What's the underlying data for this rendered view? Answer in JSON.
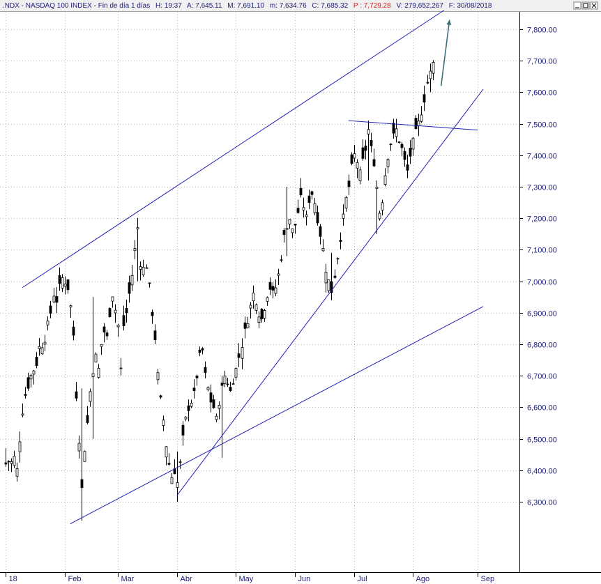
{
  "header": {
    "symbol": ".NDX - NASDAQ 100 INDEX - Fin de día 1 días",
    "high": "H: 19:37",
    "avg": "A: 7,645.11",
    "max": "M: 7,691.10",
    "min": "m: 7,634.76",
    "close": "C: 7,685.32",
    "price": "P : 7,729.28",
    "volume": "V: 279,652,267",
    "date": "F: 30/08/2018"
  },
  "window_buttons": {
    "minimize": "minimize-icon",
    "restore": "restore-icon",
    "close": "close-icon"
  },
  "colors": {
    "candle": "#000000",
    "trendline": "#1f1fb4",
    "arrow": "#3c6e78",
    "axis_text": "#1a1a7a",
    "price_text": "#d42020",
    "grid": "#b4b4b4"
  },
  "chart_data": {
    "type": "candlestick",
    "title": ".NDX - NASDAQ 100 INDEX",
    "ylim": [
      6220,
      7880
    ],
    "grid": true,
    "y_ticks": [
      "7,800.00",
      "7,700.00",
      "7,600.00",
      "7,500.00",
      "7,400.00",
      "7,300.00",
      "7,200.00",
      "7,100.00",
      "7,000.00",
      "6,900.00",
      "6,800.00",
      "6,700.00",
      "6,600.00",
      "6,500.00",
      "6,400.00",
      "6,300.00"
    ],
    "y_tick_values": [
      7800,
      7700,
      7600,
      7500,
      7400,
      7300,
      7200,
      7100,
      7000,
      6900,
      6800,
      6700,
      6600,
      6500,
      6400,
      6300
    ],
    "x_labels": [
      "18",
      "Feb",
      "Mar",
      "Abr",
      "May",
      "Jun",
      "Jul",
      "Ago",
      "Sep"
    ],
    "x_label_index": [
      0,
      21,
      40,
      61,
      82,
      103,
      124,
      145,
      168
    ],
    "num_bars": 174,
    "anchors": [
      [
        0,
        6420
      ],
      [
        1,
        6430
      ],
      [
        2,
        6425
      ],
      [
        3,
        6440
      ],
      [
        4,
        6400
      ],
      [
        5,
        6500
      ],
      [
        6,
        6590
      ],
      [
        7,
        6640
      ],
      [
        8,
        6670
      ],
      [
        9,
        6700
      ],
      [
        10,
        6720
      ],
      [
        11,
        6740
      ],
      [
        12,
        6790
      ],
      [
        13,
        6800
      ],
      [
        14,
        6820
      ],
      [
        15,
        6860
      ],
      [
        16,
        6900
      ],
      [
        17,
        6960
      ],
      [
        18,
        6940
      ],
      [
        19,
        6980
      ],
      [
        20,
        7010
      ],
      [
        21,
        7000
      ],
      [
        22,
        6980
      ],
      [
        23,
        6920
      ],
      [
        24,
        6830
      ],
      [
        25,
        6640
      ],
      [
        26,
        6500
      ],
      [
        27,
        6340
      ],
      [
        28,
        6470
      ],
      [
        29,
        6550
      ],
      [
        30,
        6650
      ],
      [
        31,
        6720
      ],
      [
        32,
        6760
      ],
      [
        33,
        6720
      ],
      [
        34,
        6800
      ],
      [
        35,
        6840
      ],
      [
        36,
        6820
      ],
      [
        37,
        6900
      ],
      [
        38,
        6960
      ],
      [
        39,
        6910
      ],
      [
        40,
        6860
      ],
      [
        41,
        6720
      ],
      [
        42,
        6860
      ],
      [
        43,
        6900
      ],
      [
        44,
        6960
      ],
      [
        45,
        7020
      ],
      [
        46,
        7100
      ],
      [
        47,
        7170
      ],
      [
        48,
        7060
      ],
      [
        49,
        7040
      ],
      [
        50,
        7050
      ],
      [
        51,
        6980
      ],
      [
        52,
        6900
      ],
      [
        53,
        6820
      ],
      [
        54,
        6700
      ],
      [
        55,
        6620
      ],
      [
        56,
        6560
      ],
      [
        57,
        6480
      ],
      [
        58,
        6420
      ],
      [
        59,
        6380
      ],
      [
        60,
        6400
      ],
      [
        61,
        6360
      ],
      [
        62,
        6420
      ],
      [
        63,
        6500
      ],
      [
        64,
        6560
      ],
      [
        65,
        6600
      ],
      [
        66,
        6620
      ],
      [
        67,
        6640
      ],
      [
        68,
        6700
      ],
      [
        69,
        6760
      ],
      [
        70,
        6780
      ],
      [
        71,
        6700
      ],
      [
        72,
        6660
      ],
      [
        73,
        6620
      ],
      [
        74,
        6600
      ],
      [
        75,
        6560
      ],
      [
        76,
        6620
      ],
      [
        77,
        6660
      ],
      [
        78,
        6700
      ],
      [
        79,
        6680
      ],
      [
        80,
        6650
      ],
      [
        81,
        6690
      ],
      [
        82,
        6720
      ],
      [
        83,
        6760
      ],
      [
        84,
        6800
      ],
      [
        85,
        6840
      ],
      [
        86,
        6880
      ],
      [
        87,
        6920
      ],
      [
        88,
        6960
      ],
      [
        89,
        6940
      ],
      [
        90,
        6900
      ],
      [
        91,
        6880
      ],
      [
        92,
        6920
      ],
      [
        93,
        6960
      ],
      [
        94,
        6980
      ],
      [
        95,
        6960
      ],
      [
        96,
        6980
      ],
      [
        97,
        7020
      ],
      [
        98,
        7080
      ],
      [
        99,
        7140
      ],
      [
        100,
        7180
      ],
      [
        101,
        7200
      ],
      [
        102,
        7160
      ],
      [
        103,
        7180
      ],
      [
        104,
        7220
      ],
      [
        105,
        7260
      ],
      [
        106,
        7240
      ],
      [
        107,
        7200
      ],
      [
        108,
        7260
      ],
      [
        109,
        7280
      ],
      [
        110,
        7250
      ],
      [
        111,
        7200
      ],
      [
        112,
        7150
      ],
      [
        113,
        7100
      ],
      [
        114,
        7040
      ],
      [
        115,
        7000
      ],
      [
        116,
        6970
      ],
      [
        117,
        7020
      ],
      [
        118,
        7080
      ],
      [
        119,
        7140
      ],
      [
        120,
        7200
      ],
      [
        121,
        7260
      ],
      [
        122,
        7300
      ],
      [
        123,
        7360
      ],
      [
        124,
        7400
      ],
      [
        125,
        7380
      ],
      [
        126,
        7340
      ],
      [
        127,
        7380
      ],
      [
        128,
        7420
      ],
      [
        129,
        7480
      ],
      [
        130,
        7420
      ],
      [
        131,
        7380
      ],
      [
        132,
        7300
      ],
      [
        133,
        7220
      ],
      [
        134,
        7260
      ],
      [
        135,
        7340
      ],
      [
        136,
        7400
      ],
      [
        137,
        7440
      ],
      [
        138,
        7460
      ],
      [
        139,
        7480
      ],
      [
        140,
        7450
      ],
      [
        141,
        7420
      ],
      [
        142,
        7380
      ],
      [
        143,
        7350
      ],
      [
        144,
        7400
      ],
      [
        145,
        7440
      ],
      [
        146,
        7470
      ],
      [
        147,
        7500
      ],
      [
        148,
        7540
      ],
      [
        149,
        7580
      ],
      [
        150,
        7630
      ],
      [
        151,
        7660
      ],
      [
        152,
        7690
      ]
    ],
    "spikes": [
      {
        "i": 0,
        "low": 6420,
        "high": 6470
      },
      {
        "i": 27,
        "low": 6240,
        "high": 6660
      },
      {
        "i": 31,
        "low": 6500,
        "high": 6950
      },
      {
        "i": 47,
        "low": 7000,
        "high": 7190
      },
      {
        "i": 61,
        "low": 6300,
        "high": 6460
      },
      {
        "i": 77,
        "low": 6440,
        "high": 6700
      },
      {
        "i": 100,
        "low": 7080,
        "high": 7300
      },
      {
        "i": 116,
        "low": 6940,
        "high": 7090
      },
      {
        "i": 129,
        "low": 7320,
        "high": 7510
      },
      {
        "i": 132,
        "low": 7150,
        "high": 7320
      },
      {
        "i": 151,
        "low": 7600,
        "high": 7691
      }
    ],
    "trendlines": [
      {
        "name": "upper-channel",
        "points": [
          [
            6,
            6980
          ],
          [
            156,
            7860
          ]
        ]
      },
      {
        "name": "lower-channel",
        "points": [
          [
            23,
            6230
          ],
          [
            170,
            6920
          ]
        ]
      },
      {
        "name": "support",
        "points": [
          [
            61,
            6320
          ],
          [
            170,
            7610
          ]
        ]
      },
      {
        "name": "resistance",
        "points": [
          [
            122,
            7510
          ],
          [
            168,
            7480
          ]
        ]
      }
    ],
    "arrow": {
      "from": [
        155,
        7620
      ],
      "to": [
        158,
        7830
      ]
    }
  }
}
